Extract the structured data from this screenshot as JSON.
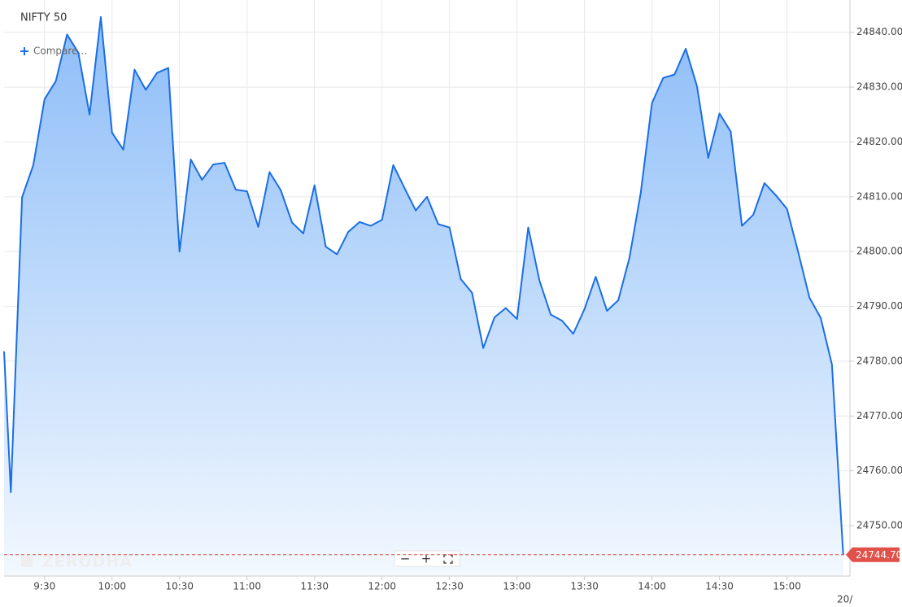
{
  "chart_data": {
    "type": "line",
    "title": "NIFTY 50",
    "compare_label": "Compare...",
    "watermark": "ZERODHA",
    "zoom_controls": [
      "−",
      "+"
    ],
    "date_label": "20/",
    "color": "#1a6ee6",
    "fill_top": "#8dbdf8",
    "fill_bottom": "#f2f8fe",
    "grid": true,
    "x": [
      "9:12",
      "9:15",
      "9:20",
      "9:25",
      "9:30",
      "9:35",
      "9:40",
      "9:45",
      "9:50",
      "9:55",
      "10:00",
      "10:05",
      "10:10",
      "10:15",
      "10:20",
      "10:25",
      "10:30",
      "10:35",
      "10:40",
      "10:45",
      "10:50",
      "10:55",
      "11:00",
      "11:05",
      "11:10",
      "11:15",
      "11:20",
      "11:25",
      "11:30",
      "11:35",
      "11:40",
      "11:45",
      "11:50",
      "11:55",
      "12:00",
      "12:05",
      "12:10",
      "12:15",
      "12:20",
      "12:25",
      "12:30",
      "12:35",
      "12:40",
      "12:45",
      "12:50",
      "12:55",
      "13:00",
      "13:05",
      "13:10",
      "13:15",
      "13:20",
      "13:25",
      "13:30",
      "13:35",
      "13:40",
      "13:45",
      "13:50",
      "13:55",
      "14:00",
      "14:05",
      "14:10",
      "14:15",
      "14:20",
      "14:25",
      "14:30",
      "14:35",
      "14:40",
      "14:45",
      "14:50",
      "14:55",
      "15:00",
      "15:05",
      "15:10",
      "15:15",
      "15:20",
      "15:25"
    ],
    "values": [
      24781.8,
      24756.1,
      24809.9,
      24815.8,
      24827.8,
      24831.1,
      24839.6,
      24836.3,
      24825,
      24842.8,
      24821.7,
      24818.6,
      24833.2,
      24829.5,
      24832.6,
      24833.5,
      24800,
      24816.8,
      24813.1,
      24815.9,
      24816.2,
      24811.3,
      24811,
      24804.5,
      24814.5,
      24811.2,
      24805.3,
      24803.3,
      24812.1,
      24800.9,
      24799.5,
      24803.6,
      24805.4,
      24804.7,
      24805.8,
      24815.8,
      24811.6,
      24807.5,
      24810,
      24805,
      24804.4,
      24795,
      24792.5,
      24782.4,
      24788,
      24789.7,
      24787.7,
      24804.4,
      24794.7,
      24788.5,
      24787.4,
      24785,
      24789.5,
      24795.4,
      24789.2,
      24791.1,
      24798.9,
      24810.7,
      24827.1,
      24831.7,
      24832.3,
      24837,
      24830.2,
      24817.1,
      24825.2,
      24821.9,
      24804.7,
      24806.7,
      24812.5,
      24810.3,
      24807.8,
      24799.9,
      24791.6,
      24787.9,
      24779.4,
      24744.7
    ],
    "last_price": {
      "value": 24744.7,
      "label": "24744.70"
    },
    "xlim": [
      "9:12",
      "15:28"
    ],
    "xticks": [
      "9:30",
      "10:00",
      "10:30",
      "11:00",
      "11:30",
      "12:00",
      "12:30",
      "13:00",
      "13:30",
      "14:00",
      "14:30",
      "15:00"
    ],
    "ylim": [
      24740.8,
      24845.9
    ],
    "yticks": [
      {
        "value": 24750,
        "label": "24750.00"
      },
      {
        "value": 24760,
        "label": "24760.00"
      },
      {
        "value": 24770,
        "label": "24770.00"
      },
      {
        "value": 24780,
        "label": "24780.00"
      },
      {
        "value": 24790,
        "label": "24790.00"
      },
      {
        "value": 24800,
        "label": "24800.00"
      },
      {
        "value": 24810,
        "label": "24810.00"
      },
      {
        "value": 24820,
        "label": "24820.00"
      },
      {
        "value": 24830,
        "label": "24830.00"
      },
      {
        "value": 24840,
        "label": "24840.00"
      }
    ]
  }
}
